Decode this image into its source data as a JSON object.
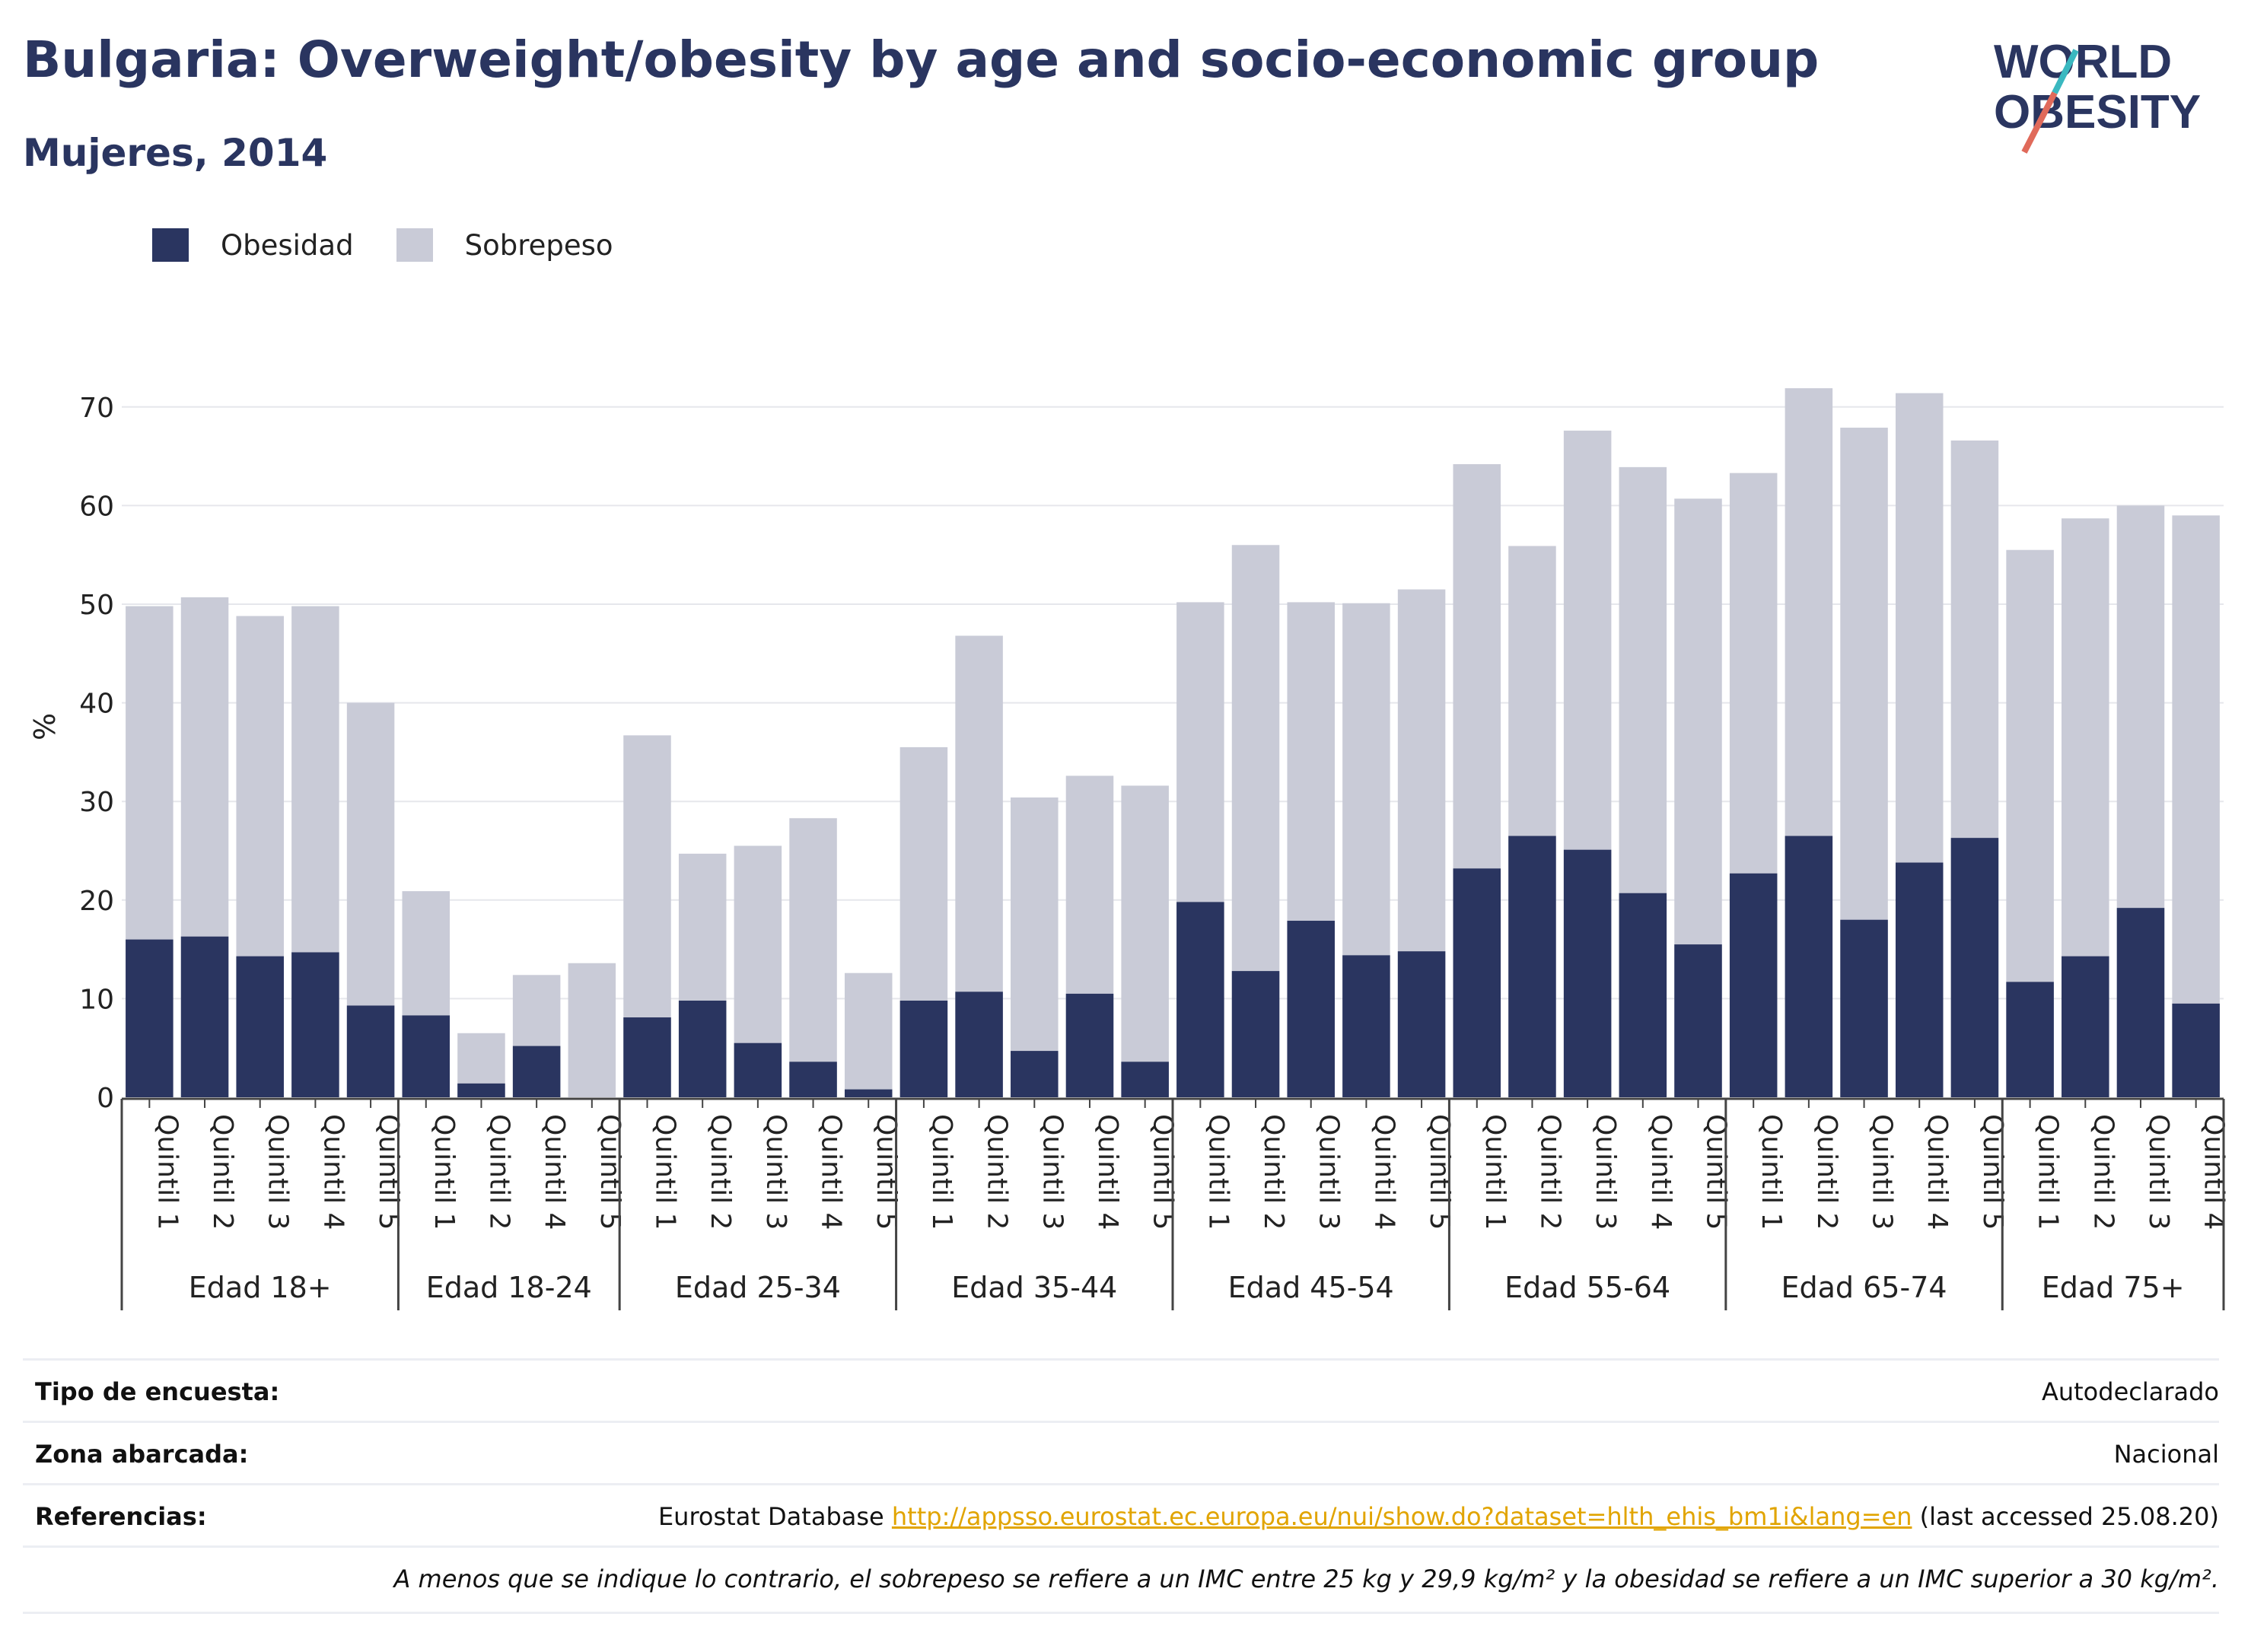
{
  "header": {
    "title": "Bulgaria: Overweight/obesity by age and socio-economic group",
    "subtitle": "Mujeres, 2014"
  },
  "logo": {
    "line1": "WORLD",
    "line2": "OBESITY"
  },
  "colors": {
    "obesity": "#2a3560",
    "overweight": "#c9cbd7",
    "accent_red": "#e06a5a",
    "accent_teal": "#3ab8c0",
    "link": "#e1a400"
  },
  "chart_data": {
    "type": "bar",
    "stacked": true,
    "ylabel": "%",
    "ylim": [
      0,
      75
    ],
    "yticks": [
      0,
      10,
      20,
      30,
      40,
      50,
      60,
      70
    ],
    "grid": true,
    "legend_position": "top-left",
    "series": [
      {
        "name": "Obesidad",
        "color": "#2a3560"
      },
      {
        "name": "Sobrepeso",
        "color": "#c9cbd7"
      }
    ],
    "groups": [
      {
        "label": "Edad 18+",
        "bars": [
          {
            "label": "Quintil 1",
            "obesidad": 16.0,
            "total": 49.8
          },
          {
            "label": "Quintil 2",
            "obesidad": 16.3,
            "total": 50.7
          },
          {
            "label": "Quintil 3",
            "obesidad": 14.3,
            "total": 48.8
          },
          {
            "label": "Quintil 4",
            "obesidad": 14.7,
            "total": 49.8
          },
          {
            "label": "Quintil 5",
            "obesidad": 9.3,
            "total": 40.0
          }
        ]
      },
      {
        "label": "Edad 18-24",
        "bars": [
          {
            "label": "Quintil 1",
            "obesidad": 8.3,
            "total": 20.9
          },
          {
            "label": "Quintil 2",
            "obesidad": 1.4,
            "total": 6.5
          },
          {
            "label": "Quintil 4",
            "obesidad": 5.2,
            "total": 12.4
          },
          {
            "label": "Quintil 5",
            "obesidad": 0.0,
            "total": 13.6
          }
        ]
      },
      {
        "label": "Edad 25-34",
        "bars": [
          {
            "label": "Quintil 1",
            "obesidad": 8.1,
            "total": 36.7
          },
          {
            "label": "Quintil 2",
            "obesidad": 9.8,
            "total": 24.7
          },
          {
            "label": "Quintil 3",
            "obesidad": 5.5,
            "total": 25.5
          },
          {
            "label": "Quintil 4",
            "obesidad": 3.6,
            "total": 28.3
          },
          {
            "label": "Quintil 5",
            "obesidad": 0.8,
            "total": 12.6
          }
        ]
      },
      {
        "label": "Edad 35-44",
        "bars": [
          {
            "label": "Quintil 1",
            "obesidad": 9.8,
            "total": 35.5
          },
          {
            "label": "Quintil 2",
            "obesidad": 10.7,
            "total": 46.8
          },
          {
            "label": "Quintil 3",
            "obesidad": 4.7,
            "total": 30.4
          },
          {
            "label": "Quintil 4",
            "obesidad": 10.5,
            "total": 32.6
          },
          {
            "label": "Quintil 5",
            "obesidad": 3.6,
            "total": 31.6
          }
        ]
      },
      {
        "label": "Edad 45-54",
        "bars": [
          {
            "label": "Quintil 1",
            "obesidad": 19.8,
            "total": 50.2
          },
          {
            "label": "Quintil 2",
            "obesidad": 12.8,
            "total": 56.0
          },
          {
            "label": "Quintil 3",
            "obesidad": 17.9,
            "total": 50.2
          },
          {
            "label": "Quintil 4",
            "obesidad": 14.4,
            "total": 50.1
          },
          {
            "label": "Quintil 5",
            "obesidad": 14.8,
            "total": 51.5
          }
        ]
      },
      {
        "label": "Edad 55-64",
        "bars": [
          {
            "label": "Quintil 1",
            "obesidad": 23.2,
            "total": 64.2
          },
          {
            "label": "Quintil 2",
            "obesidad": 26.5,
            "total": 55.9
          },
          {
            "label": "Quintil 3",
            "obesidad": 25.1,
            "total": 67.6
          },
          {
            "label": "Quintil 4",
            "obesidad": 20.7,
            "total": 63.9
          },
          {
            "label": "Quintil 5",
            "obesidad": 15.5,
            "total": 60.7
          }
        ]
      },
      {
        "label": "Edad 65-74",
        "bars": [
          {
            "label": "Quintil 1",
            "obesidad": 22.7,
            "total": 63.3
          },
          {
            "label": "Quintil 2",
            "obesidad": 26.5,
            "total": 71.9
          },
          {
            "label": "Quintil 3",
            "obesidad": 18.0,
            "total": 67.9
          },
          {
            "label": "Quintil 4",
            "obesidad": 23.8,
            "total": 71.4
          },
          {
            "label": "Quintil 5",
            "obesidad": 26.3,
            "total": 66.6
          }
        ]
      },
      {
        "label": "Edad 75+",
        "bars": [
          {
            "label": "Quintil 1",
            "obesidad": 11.7,
            "total": 55.5
          },
          {
            "label": "Quintil 2",
            "obesidad": 14.3,
            "total": 58.7
          },
          {
            "label": "Quintil 3",
            "obesidad": 19.2,
            "total": 60.0
          },
          {
            "label": "Quintil 4",
            "obesidad": 9.5,
            "total": 59.0
          }
        ]
      }
    ]
  },
  "info": {
    "survey_key": "Tipo de encuesta:",
    "survey_val": "Autodeclarado",
    "area_key": "Zona abarcada:",
    "area_val": "Nacional",
    "ref_key": "Referencias:",
    "ref_prefix": "Eurostat Database",
    "ref_link": "http://appsso.eurostat.ec.europa.eu/nui/show.do?dataset=hlth_ehis_bm1i&lang=en",
    "ref_suffix": "(last accessed 25.08.20)",
    "note": "A menos que se indique lo contrario, el sobrepeso se refiere a un IMC entre 25 kg y 29,9 kg/m² y la obesidad se refiere a un IMC superior a 30 kg/m²."
  }
}
